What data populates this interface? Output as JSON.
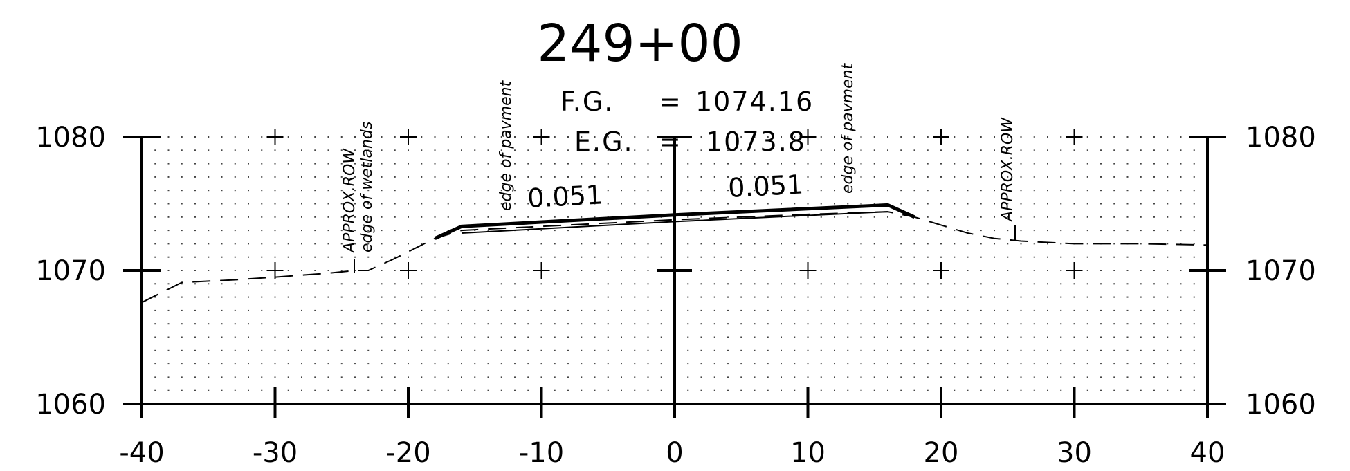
{
  "title": "249+00",
  "grades": {
    "fg_label": "F.G.",
    "fg_value": "1074.16",
    "eg_label": "E.G.",
    "eg_value": "1073.8",
    "equals": "="
  },
  "chart_data": {
    "type": "line",
    "title": "249+00",
    "xlim": [
      -40,
      40
    ],
    "ylim": [
      1060,
      1080
    ],
    "x_ticks": [
      -40,
      -30,
      -20,
      -10,
      0,
      10,
      20,
      30,
      40
    ],
    "x_tick_labels": [
      "-40",
      "-30",
      "-20",
      "-10",
      "0",
      "10",
      "20",
      "30",
      "40"
    ],
    "y_ticks": [
      1060,
      1070,
      1080
    ],
    "y_tick_labels": [
      "1060",
      "1070",
      "1080"
    ],
    "grid": "dotted",
    "series": [
      {
        "style": "dashed",
        "points": [
          [
            -40,
            1067.6
          ],
          [
            -37,
            1069.1
          ],
          [
            -33,
            1069.3
          ],
          [
            -30,
            1069.5
          ],
          [
            -26,
            1069.8
          ],
          [
            -24,
            1070.0
          ],
          [
            -23,
            1070.0
          ],
          [
            -21,
            1070.9
          ],
          [
            -18,
            1072.4
          ],
          [
            -16,
            1073.0
          ],
          [
            -10,
            1073.3
          ],
          [
            0,
            1073.8
          ],
          [
            10,
            1074.2
          ],
          [
            16,
            1074.4
          ],
          [
            18,
            1074.0
          ],
          [
            20,
            1073.4
          ],
          [
            22,
            1072.8
          ],
          [
            24,
            1072.4
          ],
          [
            26,
            1072.2
          ],
          [
            30,
            1072.0
          ],
          [
            35,
            1072.0
          ],
          [
            40,
            1071.9
          ]
        ]
      },
      {
        "style": "solid",
        "points": [
          [
            -18,
            1072.4
          ],
          [
            -16,
            1073.3
          ],
          [
            0,
            1074.16
          ],
          [
            16,
            1074.9
          ],
          [
            18,
            1074.0
          ]
        ]
      }
    ],
    "slope_labels": [
      "0.051",
      "0.051"
    ],
    "annotations": [
      "APPROX.ROW",
      "edge of wetlands",
      "edge of pavment",
      "edge of pavment",
      "APPROX.ROW"
    ]
  }
}
